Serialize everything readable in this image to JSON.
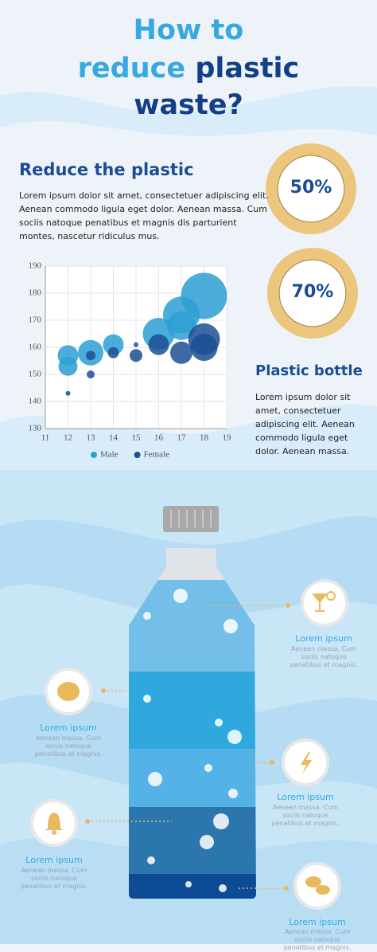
{
  "title": {
    "line1": "How to",
    "line2a": "reduce",
    "line2b": "plastic",
    "line3": "waste?"
  },
  "section1": {
    "heading": "Reduce the plastic",
    "text": "Lorem ipsum dolor sit amet, consectetuer adipiscing elit. Aenean commodo ligula eget dolor. Aenean massa. Cum sociis natoque penatibus et magnis dis parturient montes, nascetur ridiculus mus."
  },
  "rings": [
    "50%",
    "70%"
  ],
  "section2": {
    "heading": "Plastic bottle",
    "text": "Lorem ipsum dolor sit amet, consectetuer adipiscing elit. Aenean commodo ligula eget dolor. Aenean massa."
  },
  "callouts": [
    {
      "title": "Lorem ipsum",
      "text": "Aenean massa. Cum sociis natoque penatibus et magnis."
    },
    {
      "title": "Lorem ipsum",
      "text": "Aenean massa. Cum sociis natoque penatibus et magnis."
    },
    {
      "title": "Lorem ipsum",
      "text": "Aenean massa. Cum sociis natoque penatibus et magnis."
    },
    {
      "title": "Lorem ipsum",
      "text": "Aenean massa. Cum sociis natoque penatibus et magnis."
    },
    {
      "title": "Lorem ipsum",
      "text": "Aenean massa. Cum sociis natoque penatibus et magnis."
    }
  ],
  "chart_data": {
    "type": "scatter",
    "xlim": [
      11,
      19
    ],
    "xticks": [
      11,
      12,
      13,
      14,
      15,
      16,
      17,
      18,
      19
    ],
    "ylim": [
      130,
      190
    ],
    "yticks": [
      130,
      140,
      150,
      160,
      170,
      180,
      190
    ],
    "grid": true,
    "series": [
      {
        "name": "Male",
        "color": "#2e9fd4",
        "x": [
          12,
          12,
          13,
          14,
          16,
          17,
          17,
          18
        ],
        "values": [
          157,
          153,
          158,
          161,
          165,
          172,
          168,
          179
        ],
        "size": [
          13,
          12,
          16,
          13,
          20,
          23,
          18,
          29
        ]
      },
      {
        "name": "Female",
        "color": "#1d4f94",
        "x": [
          12,
          13,
          13,
          14,
          15,
          15,
          16,
          17,
          18,
          18
        ],
        "values": [
          143,
          157,
          150,
          158,
          161,
          157,
          161,
          158,
          163,
          160
        ],
        "size": [
          3,
          6,
          5,
          7,
          3,
          8,
          13,
          14,
          20,
          17
        ]
      }
    ]
  }
}
